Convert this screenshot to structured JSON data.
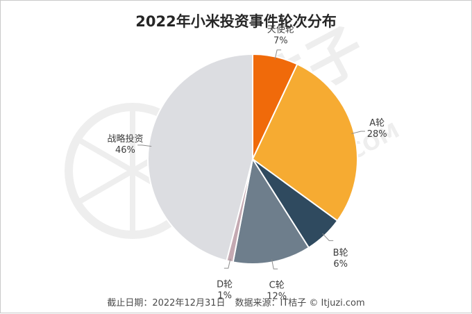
{
  "chart_data": {
    "type": "pie",
    "title": "2022年小米投资事件轮次分布",
    "slices": [
      {
        "label": "天使轮",
        "value": 7,
        "display": "7%",
        "color": "#f06a0a"
      },
      {
        "label": "A轮",
        "value": 28,
        "display": "28%",
        "color": "#f6ab32"
      },
      {
        "label": "B轮",
        "value": 6,
        "display": "6%",
        "color": "#2f4a5f"
      },
      {
        "label": "C轮",
        "value": 12,
        "display": "12%",
        "color": "#6e7e8c"
      },
      {
        "label": "D轮",
        "value": 1,
        "display": "1%",
        "color": "#c4a9b2"
      },
      {
        "label": "战略投资",
        "value": 46,
        "display": "46%",
        "color": "#dcdde1"
      }
    ]
  },
  "footer": {
    "date_text": "截止日期：2022年12月31日",
    "source_text": "数据来源：IT桔子 © Itjuzi.com"
  },
  "watermark": {
    "brand_text": "IT桔子",
    "domain_text": "ITJUZI.COM"
  }
}
